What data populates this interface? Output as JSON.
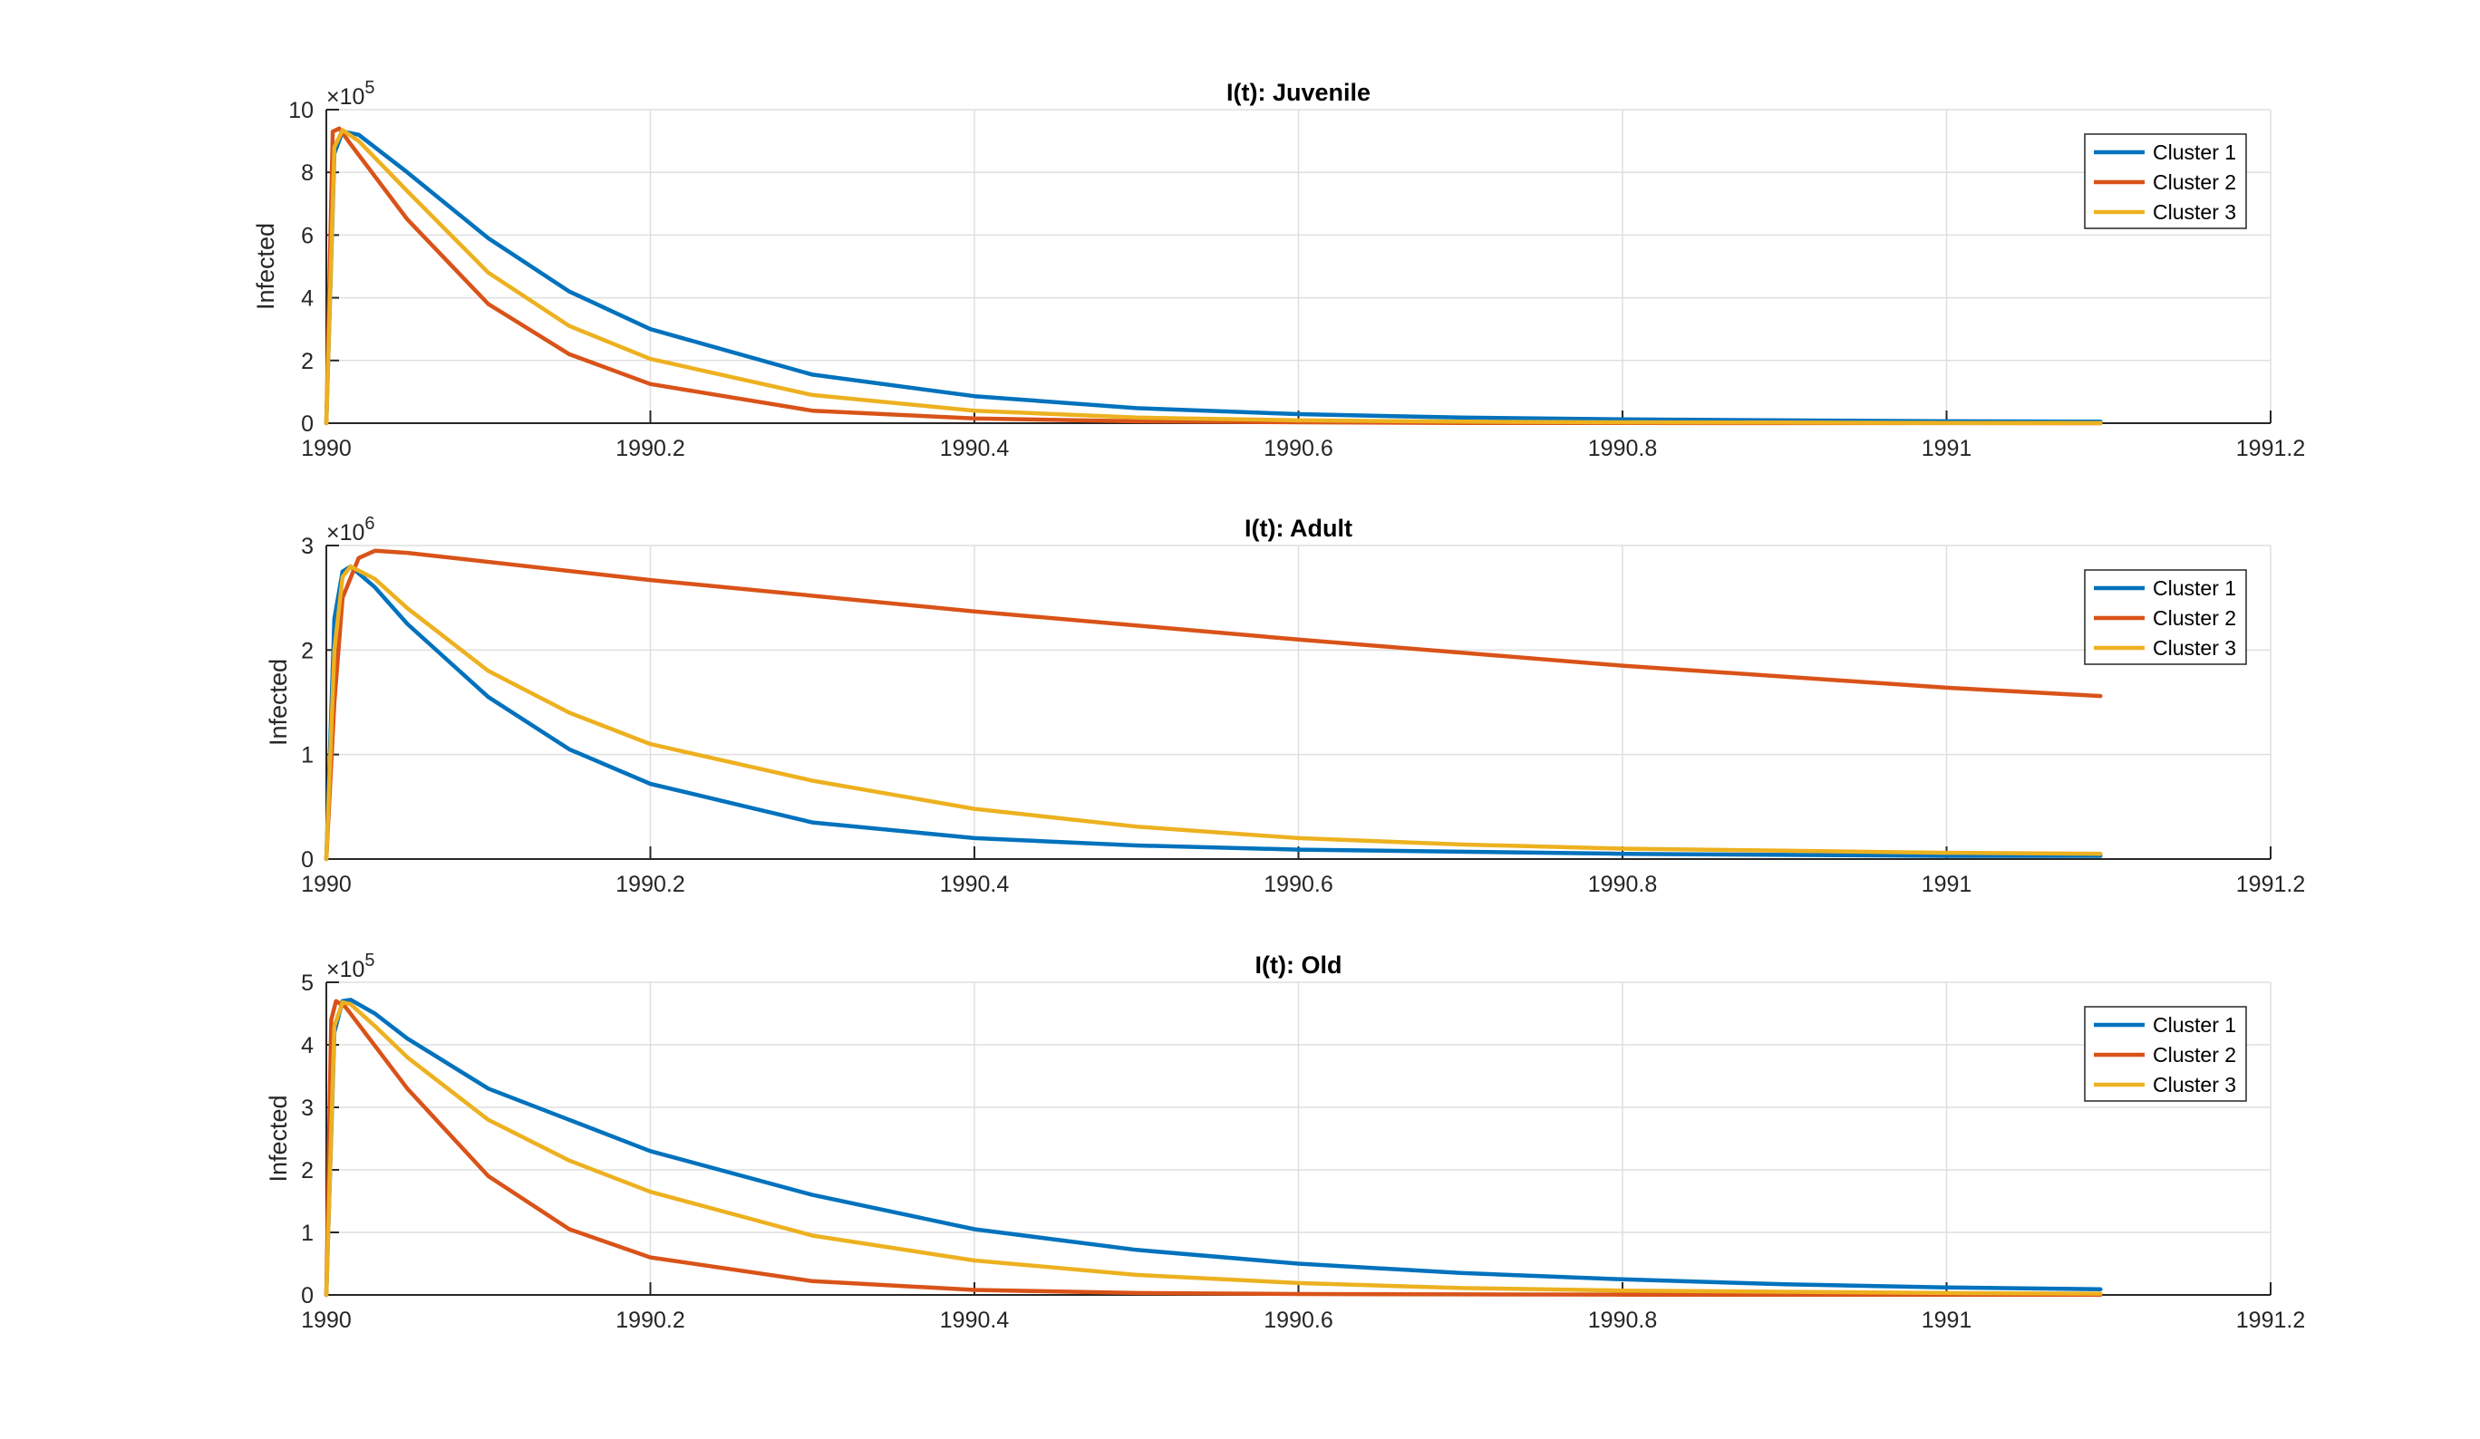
{
  "chart_data": [
    {
      "type": "line",
      "title": "I(t): Juvenile",
      "ylabel": "Infected",
      "xlabel": "",
      "xlim": [
        1990,
        1991.2
      ],
      "ylim": [
        0,
        10
      ],
      "y_multiplier_label": "×10",
      "y_exponent": "5",
      "grid": true,
      "legend_position": "top-right",
      "xticks": [
        "1990",
        "1990.2",
        "1990.4",
        "1990.6",
        "1990.8",
        "1991",
        "1991.2"
      ],
      "yticks": [
        "0",
        "2",
        "4",
        "6",
        "8",
        "10"
      ],
      "series": [
        {
          "name": "Cluster 1",
          "color": "#0072BD",
          "x": [
            1990,
            1990.005,
            1990.01,
            1990.02,
            1990.05,
            1990.1,
            1990.15,
            1990.2,
            1990.3,
            1990.4,
            1990.5,
            1990.6,
            1990.7,
            1990.8,
            1990.9,
            1991,
            1991.095
          ],
          "y": [
            0,
            8.6,
            9.3,
            9.2,
            8.0,
            5.9,
            4.2,
            3.0,
            1.55,
            0.86,
            0.48,
            0.29,
            0.18,
            0.12,
            0.09,
            0.06,
            0.05
          ]
        },
        {
          "name": "Cluster 2",
          "color": "#D95319",
          "x": [
            1990,
            1990.004,
            1990.008,
            1990.015,
            1990.05,
            1990.1,
            1990.15,
            1990.2,
            1990.3,
            1990.4,
            1990.5,
            1990.6,
            1990.7,
            1990.8,
            1990.9,
            1991,
            1991.095
          ],
          "y": [
            0,
            9.3,
            9.4,
            8.9,
            6.5,
            3.8,
            2.2,
            1.25,
            0.4,
            0.15,
            0.06,
            0.03,
            0.01,
            0.005,
            0.003,
            0.002,
            0.001
          ]
        },
        {
          "name": "Cluster 3",
          "color": "#EDB120",
          "x": [
            1990,
            1990.005,
            1990.01,
            1990.02,
            1990.05,
            1990.1,
            1990.15,
            1990.2,
            1990.3,
            1990.4,
            1990.5,
            1990.6,
            1990.7,
            1990.8,
            1990.9,
            1991,
            1991.095
          ],
          "y": [
            0,
            8.8,
            9.35,
            9.0,
            7.4,
            4.8,
            3.1,
            2.05,
            0.9,
            0.4,
            0.18,
            0.09,
            0.05,
            0.03,
            0.02,
            0.01,
            0.01
          ]
        }
      ]
    },
    {
      "type": "line",
      "title": "I(t): Adult",
      "ylabel": "Infected",
      "xlabel": "",
      "xlim": [
        1990,
        1991.2
      ],
      "ylim": [
        0,
        3
      ],
      "y_multiplier_label": "×10",
      "y_exponent": "6",
      "grid": true,
      "legend_position": "top-right",
      "xticks": [
        "1990",
        "1990.2",
        "1990.4",
        "1990.6",
        "1990.8",
        "1991",
        "1991.2"
      ],
      "yticks": [
        "0",
        "1",
        "2",
        "3"
      ],
      "series": [
        {
          "name": "Cluster 1",
          "color": "#0072BD",
          "x": [
            1990,
            1990.005,
            1990.01,
            1990.015,
            1990.03,
            1990.05,
            1990.1,
            1990.15,
            1990.2,
            1990.3,
            1990.4,
            1990.5,
            1990.6,
            1990.7,
            1990.8,
            1990.9,
            1991,
            1991.095
          ],
          "y": [
            0,
            2.3,
            2.75,
            2.8,
            2.6,
            2.25,
            1.55,
            1.05,
            0.72,
            0.35,
            0.2,
            0.13,
            0.09,
            0.07,
            0.05,
            0.04,
            0.03,
            0.03
          ]
        },
        {
          "name": "Cluster 2",
          "color": "#D95319",
          "x": [
            1990,
            1990.005,
            1990.01,
            1990.02,
            1990.03,
            1990.05,
            1990.2,
            1990.4,
            1990.6,
            1990.8,
            1991,
            1991.095
          ],
          "y": [
            0,
            1.5,
            2.5,
            2.88,
            2.95,
            2.93,
            2.67,
            2.37,
            2.1,
            1.85,
            1.64,
            1.56
          ]
        },
        {
          "name": "Cluster 3",
          "color": "#EDB120",
          "x": [
            1990,
            1990.005,
            1990.01,
            1990.015,
            1990.03,
            1990.05,
            1990.1,
            1990.15,
            1990.2,
            1990.3,
            1990.4,
            1990.5,
            1990.6,
            1990.7,
            1990.8,
            1990.9,
            1991,
            1991.095
          ],
          "y": [
            0,
            2.0,
            2.7,
            2.8,
            2.68,
            2.4,
            1.8,
            1.4,
            1.1,
            0.75,
            0.48,
            0.31,
            0.2,
            0.14,
            0.1,
            0.08,
            0.06,
            0.05
          ]
        }
      ]
    },
    {
      "type": "line",
      "title": "I(t): Old",
      "ylabel": "Infected",
      "xlabel": "",
      "xlim": [
        1990,
        1991.2
      ],
      "ylim": [
        0,
        5
      ],
      "y_multiplier_label": "×10",
      "y_exponent": "5",
      "grid": true,
      "legend_position": "top-right",
      "xticks": [
        "1990",
        "1990.2",
        "1990.4",
        "1990.6",
        "1990.8",
        "1991",
        "1991.2"
      ],
      "yticks": [
        "0",
        "1",
        "2",
        "3",
        "4",
        "5"
      ],
      "series": [
        {
          "name": "Cluster 1",
          "color": "#0072BD",
          "x": [
            1990,
            1990.005,
            1990.01,
            1990.015,
            1990.03,
            1990.05,
            1990.1,
            1990.15,
            1990.2,
            1990.3,
            1990.4,
            1990.5,
            1990.6,
            1990.7,
            1990.8,
            1990.9,
            1991,
            1991.095
          ],
          "y": [
            0,
            4.2,
            4.7,
            4.72,
            4.5,
            4.1,
            3.3,
            2.8,
            2.3,
            1.6,
            1.05,
            0.72,
            0.5,
            0.35,
            0.25,
            0.17,
            0.12,
            0.09
          ]
        },
        {
          "name": "Cluster 2",
          "color": "#D95319",
          "x": [
            1990,
            1990.003,
            1990.006,
            1990.012,
            1990.05,
            1990.1,
            1990.15,
            1990.2,
            1990.3,
            1990.4,
            1990.5,
            1990.6,
            1990.7,
            1990.8,
            1990.9,
            1991,
            1991.095
          ],
          "y": [
            0,
            4.4,
            4.7,
            4.6,
            3.3,
            1.9,
            1.05,
            0.6,
            0.22,
            0.08,
            0.03,
            0.015,
            0.008,
            0.004,
            0.002,
            0.001,
            0.001
          ]
        },
        {
          "name": "Cluster 3",
          "color": "#EDB120",
          "x": [
            1990,
            1990.005,
            1990.01,
            1990.015,
            1990.03,
            1990.05,
            1990.1,
            1990.15,
            1990.2,
            1990.3,
            1990.4,
            1990.5,
            1990.6,
            1990.7,
            1990.8,
            1990.9,
            1991,
            1991.095
          ],
          "y": [
            0,
            4.3,
            4.68,
            4.65,
            4.3,
            3.8,
            2.8,
            2.15,
            1.65,
            0.95,
            0.55,
            0.32,
            0.19,
            0.11,
            0.07,
            0.05,
            0.03,
            0.02
          ]
        }
      ]
    }
  ]
}
